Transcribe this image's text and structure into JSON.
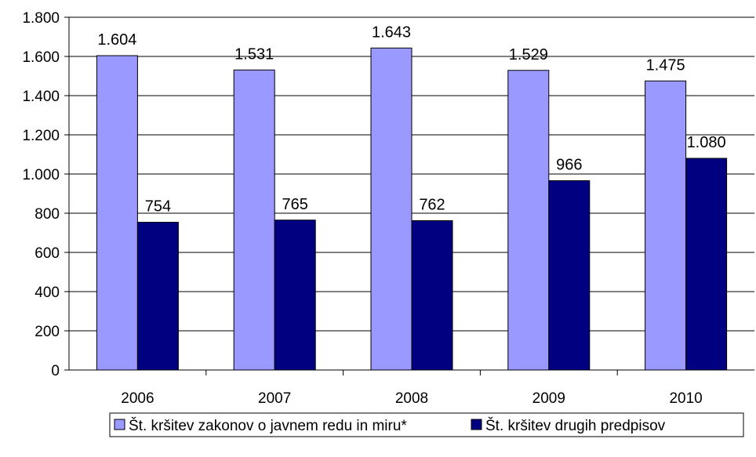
{
  "chart_data": {
    "type": "bar",
    "title": "",
    "xlabel": "",
    "ylabel": "",
    "categories": [
      "2006",
      "2007",
      "2008",
      "2009",
      "2010"
    ],
    "series": [
      {
        "name": "Št. kršitev zakonov o javnem redu in miru*",
        "values": [
          1604,
          1531,
          1643,
          1529,
          1475
        ],
        "labels": [
          "1.604",
          "1.531",
          "1.643",
          "1.529",
          "1.475"
        ],
        "color": "#9999FF"
      },
      {
        "name": "Št. kršitev drugih predpisov",
        "values": [
          754,
          765,
          762,
          966,
          1080
        ],
        "labels": [
          "754",
          "765",
          "762",
          "966",
          "1.080"
        ],
        "color": "#000080"
      }
    ],
    "ylim": [
      0,
      1800
    ],
    "yticks": [
      0,
      200,
      400,
      600,
      800,
      1000,
      1200,
      1400,
      1600,
      1800
    ],
    "ytick_labels": [
      "0",
      "200",
      "400",
      "600",
      "800",
      "1.000",
      "1.200",
      "1.400",
      "1.600",
      "1.800"
    ],
    "grid": true,
    "legend_position": "bottom"
  }
}
